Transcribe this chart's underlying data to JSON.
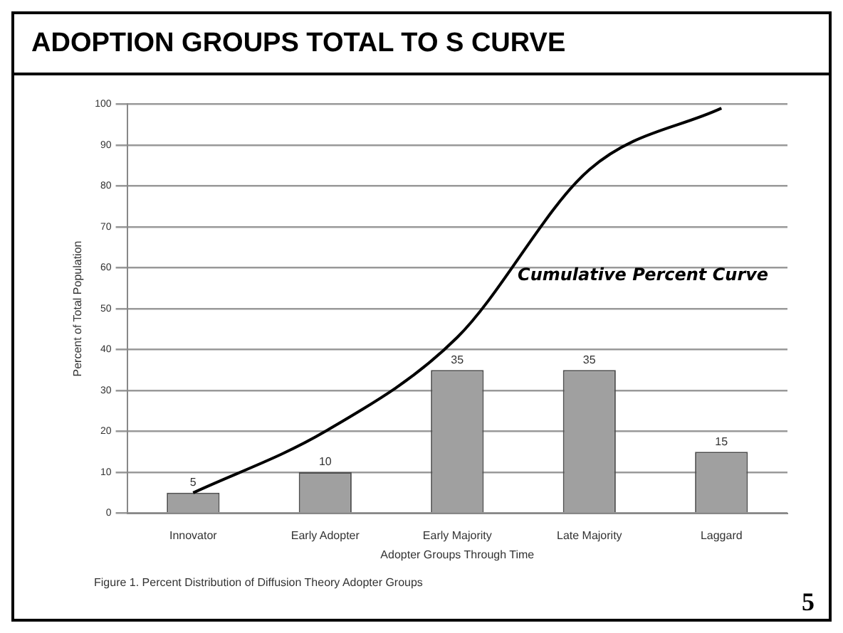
{
  "chart_data": {
    "type": "bar",
    "title": "ADOPTION GROUPS TOTAL TO S CURVE",
    "xlabel": "Adopter Groups Through Time",
    "ylabel": "Percent of Total Population",
    "categories": [
      "Innovator",
      "Early Adopter",
      "Early Majority",
      "Late Majority",
      "Laggard"
    ],
    "series": [
      {
        "type": "bar",
        "color": "#a0a0a0",
        "values": [
          5,
          10,
          35,
          35,
          15
        ],
        "value_labels": [
          "5",
          "10",
          "35",
          "35",
          "15"
        ]
      },
      {
        "type": "line",
        "name": "Cumulative Percent Curve",
        "color": "#000000",
        "values": [
          5,
          20,
          43,
          84,
          99
        ]
      }
    ],
    "ylim": [
      0,
      100
    ],
    "yticks": [
      0,
      10,
      20,
      30,
      40,
      50,
      60,
      70,
      80,
      90,
      100
    ],
    "grid": "y",
    "marker": "none",
    "annotations": [
      "Figure 1. Percent Distribution of Diffusion Theory Adopter Groups",
      "5"
    ]
  }
}
